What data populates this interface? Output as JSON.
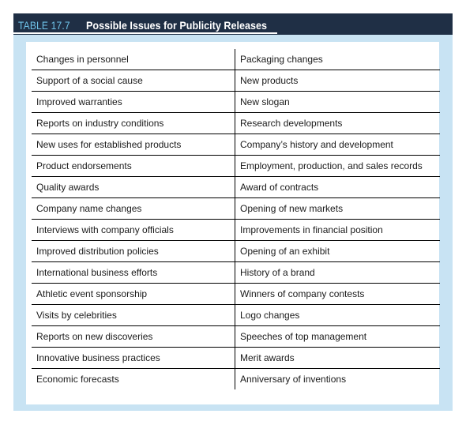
{
  "table": {
    "label": "TABLE 17.7",
    "title": "Possible Issues for Publicity Releases",
    "rows": [
      [
        "Changes in personnel",
        "Packaging changes"
      ],
      [
        "Support of a social cause",
        "New products"
      ],
      [
        "Improved warranties",
        "New slogan"
      ],
      [
        "Reports on industry conditions",
        "Research developments"
      ],
      [
        "New uses for established products",
        "Company’s history and development"
      ],
      [
        "Product endorsements",
        "Employment, production, and sales records"
      ],
      [
        "Quality awards",
        "Award of contracts"
      ],
      [
        "Company name changes",
        "Opening of new markets"
      ],
      [
        "Interviews with company officials",
        "Improvements in financial position"
      ],
      [
        "Improved distribution policies",
        "Opening of an exhibit"
      ],
      [
        "International business efforts",
        "History of a brand"
      ],
      [
        "Athletic event sponsorship",
        "Winners of company contests"
      ],
      [
        "Visits by celebrities",
        "Logo changes"
      ],
      [
        "Reports on new discoveries",
        "Speeches of top management"
      ],
      [
        "Innovative business practices",
        "Merit awards"
      ],
      [
        "Economic forecasts",
        "Anniversary of inventions"
      ]
    ]
  },
  "colors": {
    "caption_background": "#1f2f45",
    "caption_number": "#6fc3ea",
    "panel_background": "#c8e3f3"
  }
}
